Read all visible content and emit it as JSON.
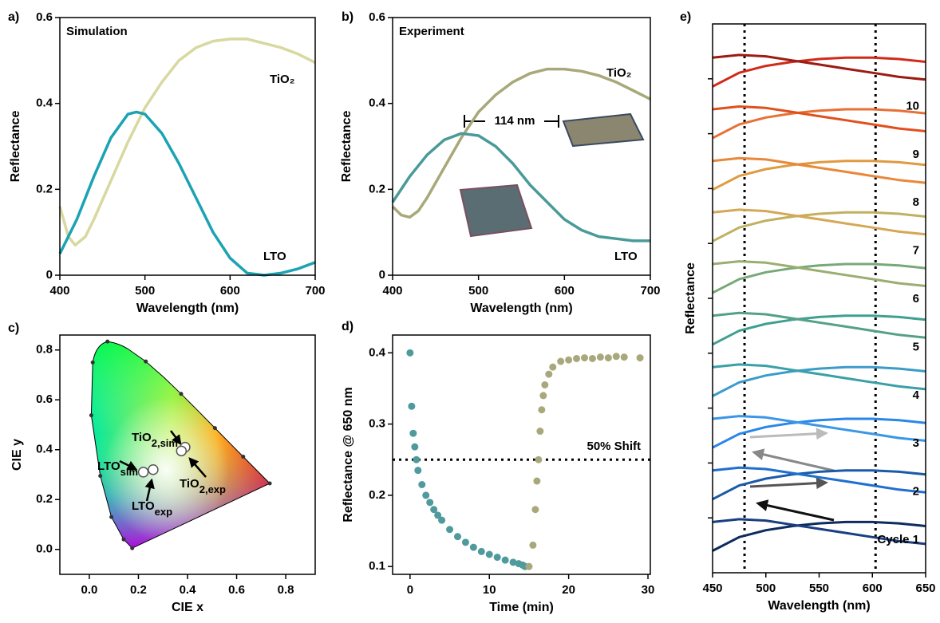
{
  "chart_data": [
    {
      "type": "line",
      "panel_label": "a)",
      "title": "Simulation",
      "xlabel": "Wavelength (nm)",
      "ylabel": "Reflectance",
      "xlim": [
        400,
        700
      ],
      "ylim": [
        0,
        0.6
      ],
      "xticks": [
        400,
        500,
        600,
        700
      ],
      "yticks": [
        0,
        0.2,
        0.4,
        0.6
      ],
      "series": [
        {
          "name": "TiO₂",
          "color": "#d8d8a0",
          "x": [
            400,
            410,
            418,
            430,
            440,
            460,
            480,
            500,
            520,
            540,
            560,
            580,
            600,
            620,
            640,
            660,
            680,
            700
          ],
          "values": [
            0.16,
            0.09,
            0.07,
            0.09,
            0.13,
            0.22,
            0.31,
            0.39,
            0.45,
            0.5,
            0.53,
            0.545,
            0.55,
            0.55,
            0.54,
            0.53,
            0.515,
            0.495
          ]
        },
        {
          "name": "LTO",
          "color": "#1ba3b3",
          "x": [
            400,
            420,
            440,
            460,
            480,
            490,
            500,
            520,
            540,
            560,
            580,
            600,
            620,
            640,
            660,
            680,
            700
          ],
          "values": [
            0.05,
            0.13,
            0.23,
            0.32,
            0.375,
            0.38,
            0.375,
            0.33,
            0.26,
            0.18,
            0.1,
            0.04,
            0.005,
            0,
            0.005,
            0.015,
            0.03
          ]
        }
      ]
    },
    {
      "type": "line",
      "panel_label": "b)",
      "title": "Experiment",
      "xlabel": "Wavelength (nm)",
      "ylabel": "Reflectance",
      "xlim": [
        400,
        700
      ],
      "ylim": [
        0,
        0.6
      ],
      "xticks": [
        400,
        500,
        600,
        700
      ],
      "yticks": [
        0,
        0.2,
        0.4,
        0.6
      ],
      "annotation": "114 nm",
      "series": [
        {
          "name": "TiO₂",
          "color": "#a8a87a",
          "x": [
            400,
            410,
            420,
            430,
            440,
            460,
            480,
            500,
            520,
            540,
            560,
            580,
            600,
            620,
            640,
            660,
            680,
            700
          ],
          "values": [
            0.16,
            0.14,
            0.135,
            0.15,
            0.18,
            0.25,
            0.32,
            0.38,
            0.42,
            0.45,
            0.47,
            0.48,
            0.48,
            0.475,
            0.465,
            0.45,
            0.43,
            0.41
          ]
        },
        {
          "name": "LTO",
          "color": "#4a9a9a",
          "x": [
            400,
            420,
            440,
            460,
            480,
            500,
            520,
            540,
            560,
            580,
            600,
            620,
            640,
            660,
            680,
            700
          ],
          "values": [
            0.17,
            0.23,
            0.28,
            0.315,
            0.33,
            0.325,
            0.3,
            0.26,
            0.21,
            0.17,
            0.13,
            0.105,
            0.09,
            0.085,
            0.08,
            0.08
          ]
        }
      ]
    },
    {
      "type": "scatter",
      "panel_label": "c)",
      "xlabel": "CIE x",
      "ylabel": "CIE y",
      "xlim": [
        -0.12,
        0.92
      ],
      "ylim": [
        -0.1,
        0.86
      ],
      "xticks": [
        {
          "value": 0,
          "label": "0.0"
        },
        0.2,
        0.4,
        0.6,
        0.8
      ],
      "yticks": [
        {
          "value": 0,
          "label": "0.0"
        },
        0.2,
        0.4,
        0.6,
        0.8
      ],
      "points": [
        {
          "label": "LTO",
          "sub": "sim",
          "x": 0.22,
          "y": 0.31
        },
        {
          "label": "LTO",
          "sub": "exp",
          "x": 0.26,
          "y": 0.32
        },
        {
          "label": "TiO",
          "sub": "2,sim",
          "x": 0.39,
          "y": 0.41
        },
        {
          "label": "TiO",
          "sub": "2,exp",
          "x": 0.375,
          "y": 0.395
        }
      ]
    },
    {
      "type": "scatter",
      "panel_label": "d)",
      "xlabel": "Time (min)",
      "ylabel": "Reflectance @ 650 nm",
      "xlim": [
        -2.2,
        30.3
      ],
      "ylim": [
        0.089,
        0.425
      ],
      "xticks": [
        0,
        10,
        20,
        30
      ],
      "yticks": [
        0.1,
        0.2,
        0.3,
        0.4
      ],
      "hline": {
        "value": 0.25,
        "label": "50% Shift"
      },
      "series": [
        {
          "color": "#4e9a9c",
          "x": [
            0,
            0.2,
            0.4,
            0.6,
            0.8,
            1,
            1.5,
            2,
            2.5,
            3,
            3.5,
            4,
            5,
            6,
            7,
            8,
            9,
            10,
            11,
            12,
            13,
            13.7,
            14.2,
            14.5
          ],
          "values": [
            0.4,
            0.325,
            0.287,
            0.268,
            0.25,
            0.235,
            0.215,
            0.2,
            0.19,
            0.18,
            0.172,
            0.165,
            0.152,
            0.142,
            0.134,
            0.127,
            0.121,
            0.117,
            0.113,
            0.109,
            0.106,
            0.104,
            0.102,
            0.1
          ]
        },
        {
          "color": "#a9a87c",
          "x": [
            15,
            15.5,
            15.8,
            16,
            16.2,
            16.4,
            16.6,
            16.8,
            17,
            17.5,
            18,
            19,
            20,
            21,
            22,
            23,
            24,
            25,
            26,
            27,
            29
          ],
          "values": [
            0.1,
            0.13,
            0.18,
            0.22,
            0.25,
            0.29,
            0.32,
            0.34,
            0.355,
            0.37,
            0.38,
            0.388,
            0.39,
            0.392,
            0.393,
            0.392,
            0.394,
            0.393,
            0.395,
            0.394,
            0.393
          ]
        }
      ]
    },
    {
      "type": "line",
      "panel_label": "e)",
      "xlabel": "Wavelength (nm)",
      "ylabel": "Reflectance",
      "xlim": [
        450,
        650
      ],
      "ylim": [
        0,
        20
      ],
      "xticks": [
        450,
        500,
        550,
        600,
        650
      ],
      "yticks": [
        2,
        4,
        6,
        8,
        10,
        12,
        14,
        16,
        18
      ],
      "ytick_labels": false,
      "vlines": [
        480,
        603
      ],
      "cycle_labels": [
        "Cycle 1",
        "2",
        "3",
        "4",
        "5",
        "6",
        "7",
        "8",
        "9",
        "10"
      ],
      "x": [
        450,
        475,
        500,
        525,
        550,
        575,
        600,
        625,
        650
      ],
      "series": [
        {
          "color": "#0d2b5e",
          "values": [
            0.8,
            1.3,
            1.55,
            1.7,
            1.8,
            1.85,
            1.85,
            1.8,
            1.7
          ]
        },
        {
          "color": "#1a3f80",
          "values": [
            1.85,
            1.95,
            1.9,
            1.75,
            1.6,
            1.45,
            1.3,
            1.15,
            1.05
          ]
        },
        {
          "color": "#1a5aa8",
          "values": [
            2.68,
            3.18,
            3.43,
            3.58,
            3.68,
            3.73,
            3.73,
            3.68,
            3.58
          ]
        },
        {
          "color": "#1e6fd0",
          "values": [
            3.73,
            3.83,
            3.78,
            3.63,
            3.48,
            3.33,
            3.18,
            3.03,
            2.93
          ]
        },
        {
          "color": "#2a86e8",
          "values": [
            4.56,
            5.06,
            5.31,
            5.46,
            5.56,
            5.61,
            5.61,
            5.56,
            5.46
          ]
        },
        {
          "color": "#3a96e6",
          "values": [
            5.61,
            5.71,
            5.66,
            5.51,
            5.36,
            5.21,
            5.06,
            4.91,
            4.81
          ]
        },
        {
          "color": "#3b9cc8",
          "values": [
            6.44,
            6.94,
            7.19,
            7.34,
            7.44,
            7.49,
            7.49,
            7.44,
            7.34
          ]
        },
        {
          "color": "#3aa0a8",
          "values": [
            7.49,
            7.59,
            7.54,
            7.39,
            7.24,
            7.09,
            6.94,
            6.79,
            6.69
          ]
        },
        {
          "color": "#40a090",
          "values": [
            8.32,
            8.82,
            9.07,
            9.22,
            9.32,
            9.37,
            9.37,
            9.32,
            9.22
          ]
        },
        {
          "color": "#55a088",
          "values": [
            9.37,
            9.47,
            9.42,
            9.27,
            9.12,
            8.97,
            8.82,
            8.67,
            8.57
          ]
        },
        {
          "color": "#78a878",
          "values": [
            10.2,
            10.7,
            10.95,
            11.1,
            11.2,
            11.25,
            11.25,
            11.2,
            11.1
          ]
        },
        {
          "color": "#9aae70",
          "values": [
            11.25,
            11.35,
            11.3,
            11.15,
            11,
            10.85,
            10.7,
            10.55,
            10.45
          ]
        },
        {
          "color": "#c0b060",
          "values": [
            12.08,
            12.58,
            12.83,
            12.98,
            13.08,
            13.13,
            13.13,
            13.08,
            12.98
          ]
        },
        {
          "color": "#d4a855",
          "values": [
            13.13,
            13.23,
            13.18,
            13.03,
            12.88,
            12.73,
            12.58,
            12.43,
            12.33
          ]
        },
        {
          "color": "#e09a40",
          "values": [
            13.96,
            14.46,
            14.71,
            14.86,
            14.96,
            15.01,
            15.01,
            14.96,
            14.86
          ]
        },
        {
          "color": "#e8883a",
          "values": [
            15.01,
            15.11,
            15.06,
            14.91,
            14.76,
            14.61,
            14.46,
            14.31,
            14.21
          ]
        },
        {
          "color": "#e87035",
          "values": [
            15.84,
            16.34,
            16.59,
            16.74,
            16.84,
            16.89,
            16.89,
            16.84,
            16.74
          ]
        },
        {
          "color": "#e0501e",
          "values": [
            16.89,
            16.99,
            16.94,
            16.79,
            16.64,
            16.49,
            16.34,
            16.19,
            16.09
          ]
        },
        {
          "color": "#d02a18",
          "values": [
            17.72,
            18.22,
            18.47,
            18.62,
            18.72,
            18.77,
            18.77,
            18.72,
            18.62
          ]
        },
        {
          "color": "#9a1c12",
          "values": [
            18.77,
            18.87,
            18.82,
            18.67,
            18.52,
            18.37,
            18.22,
            18.07,
            17.97
          ]
        }
      ]
    }
  ]
}
